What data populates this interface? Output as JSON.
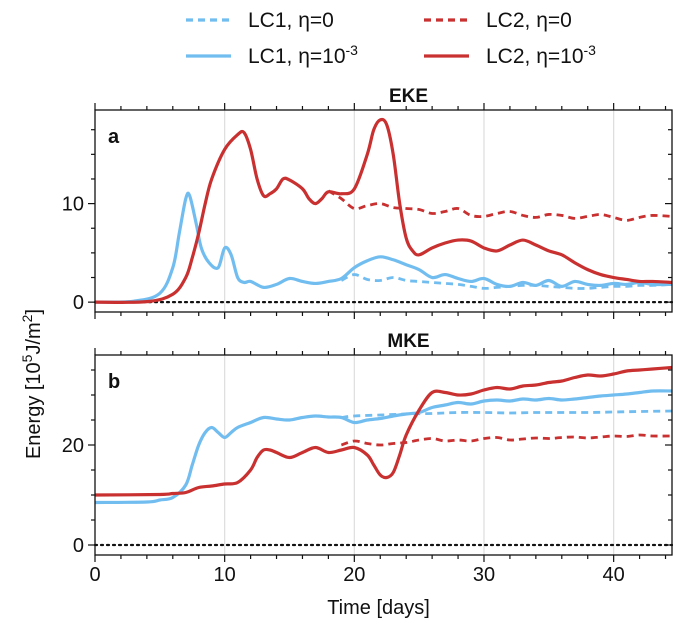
{
  "legend": {
    "entries": [
      {
        "base": "LC1, η=0",
        "sup": "",
        "series": "lc1_eta0"
      },
      {
        "base": "LC2, η=0",
        "sup": "",
        "series": "lc2_eta0"
      },
      {
        "base": "LC1, η=10",
        "sup": "-3",
        "series": "lc1_eta3"
      },
      {
        "base": "LC2, η=10",
        "sup": "-3",
        "series": "lc2_eta3"
      }
    ]
  },
  "ylabel": {
    "pre": "Energy [10",
    "sup": "5",
    "mid": "J/m",
    "sup2": "2",
    "post": "]"
  },
  "colors": {
    "lc1": "#72bdf0",
    "lc2": "#c93030",
    "grid": "#dddddd",
    "axis": "#111111"
  },
  "chart_data": [
    {
      "type": "line",
      "panel_letter": "a",
      "title": "EKE",
      "xlabel": "",
      "ylabel": "Energy [10^5 J/m^2]",
      "xlim": [
        0,
        44.5
      ],
      "ylim": [
        -1,
        19.5
      ],
      "xticks": [
        0,
        10,
        20,
        30,
        40
      ],
      "yticks": [
        0,
        10
      ],
      "zero_line": true,
      "grid": "vertical",
      "series": [
        {
          "name": "LC1, η=10^-3",
          "key": "lc1_eta3",
          "style": "solid",
          "colorKey": "lc1",
          "x": [
            0,
            3,
            5,
            6,
            6.5,
            7,
            7.3,
            7.8,
            8.2,
            8.8,
            9.5,
            10,
            10.5,
            11,
            11.5,
            12,
            13,
            14,
            15,
            16,
            17,
            18,
            19,
            20,
            21,
            22,
            23,
            24,
            25,
            26,
            27,
            28,
            29,
            30,
            31,
            32,
            33,
            34,
            35,
            36,
            37,
            38,
            39,
            40,
            41,
            42,
            43,
            44.5
          ],
          "y": [
            0,
            0.1,
            0.9,
            3.5,
            7,
            10.5,
            10.8,
            8,
            5.5,
            4,
            3.5,
            5.5,
            4.8,
            2.5,
            2,
            2.1,
            1.5,
            1.8,
            2.4,
            2.1,
            1.9,
            2.1,
            2.4,
            3.5,
            4.2,
            4.6,
            4.3,
            3.8,
            3.3,
            2.5,
            2.8,
            2.4,
            2.1,
            2.4,
            1.8,
            1.6,
            2,
            1.7,
            2.2,
            1.6,
            2.1,
            1.8,
            1.7,
            1.9,
            1.8,
            2,
            1.8,
            1.8
          ]
        },
        {
          "name": "LC1, η=0",
          "key": "lc1_eta0",
          "style": "dashed",
          "colorKey": "lc1",
          "x": [
            19,
            20,
            21,
            22,
            23,
            24,
            25,
            26,
            27,
            28,
            29,
            30,
            31,
            32,
            33,
            34,
            35,
            36,
            37,
            38,
            39,
            40,
            41,
            42,
            43,
            44.5
          ],
          "y": [
            2.2,
            2.8,
            2.3,
            2.2,
            2.5,
            2.2,
            2.1,
            2.0,
            1.9,
            1.8,
            1.6,
            1.4,
            1.5,
            1.6,
            1.7,
            1.7,
            1.6,
            1.5,
            1.4,
            1.4,
            1.5,
            1.6,
            1.6,
            1.7,
            1.7,
            1.8
          ]
        },
        {
          "name": "LC2, η=10^-3",
          "key": "lc2_eta3",
          "style": "solid",
          "colorKey": "lc2",
          "x": [
            0,
            4,
            6,
            7,
            7.5,
            8,
            8.5,
            9,
            10,
            11,
            11.5,
            12,
            12.5,
            13,
            13.5,
            14,
            14.5,
            15,
            16,
            16.5,
            17,
            17.5,
            18,
            19,
            20,
            21,
            21.5,
            22,
            22.5,
            23,
            23.5,
            24,
            24.5,
            25,
            26,
            27,
            28,
            29,
            30,
            31,
            32,
            33,
            34,
            35,
            36,
            37,
            38,
            39,
            40,
            41,
            42,
            43,
            44.5
          ],
          "y": [
            0,
            0.05,
            0.8,
            2.5,
            4.5,
            7,
            10,
            12.5,
            15.5,
            17,
            17.2,
            15.5,
            12.5,
            10.8,
            11,
            11.5,
            12.5,
            12.4,
            11.5,
            10.5,
            10,
            10.5,
            11.2,
            11,
            11.5,
            15,
            17.5,
            18.5,
            18,
            15,
            10,
            6.5,
            5.2,
            4.8,
            5.5,
            6.0,
            6.3,
            6.2,
            5.5,
            5.2,
            5.8,
            6.3,
            5.8,
            5.2,
            4.8,
            4.0,
            3.3,
            2.8,
            2.5,
            2.3,
            2.1,
            2.1,
            2.0
          ]
        },
        {
          "name": "LC2, η=0",
          "key": "lc2_eta0",
          "style": "dashed",
          "colorKey": "lc2",
          "x": [
            18,
            19,
            20,
            21,
            22,
            23,
            24,
            25,
            26,
            27,
            28,
            29,
            30,
            31,
            32,
            33,
            34,
            35,
            36,
            37,
            38,
            39,
            40,
            41,
            42,
            43,
            44.5
          ],
          "y": [
            11.3,
            10.5,
            9.5,
            9.8,
            10.0,
            9.6,
            9.5,
            9.4,
            9.0,
            9.2,
            9.5,
            8.8,
            8.7,
            9.0,
            9.2,
            8.8,
            8.6,
            8.9,
            8.8,
            8.5,
            8.7,
            8.9,
            8.6,
            8.3,
            8.6,
            8.8,
            8.7
          ]
        }
      ]
    },
    {
      "type": "line",
      "panel_letter": "b",
      "title": "MKE",
      "xlabel": "Time [days]",
      "ylabel": "Energy [10^5 J/m^2]",
      "xlim": [
        0,
        44.5
      ],
      "ylim": [
        -2,
        38
      ],
      "xticks": [
        0,
        10,
        20,
        30,
        40
      ],
      "yticks": [
        0,
        20
      ],
      "zero_line": true,
      "grid": "vertical",
      "series": [
        {
          "name": "LC1, η=10^-3",
          "key": "lc1_eta3",
          "style": "solid",
          "colorKey": "lc1",
          "x": [
            0,
            4,
            5,
            6,
            7,
            7.5,
            8,
            8.5,
            9,
            9.5,
            10,
            10.5,
            11,
            12,
            13,
            14,
            15,
            16,
            17,
            18,
            19,
            20,
            21,
            22,
            23,
            24,
            25,
            26,
            27,
            28,
            29,
            30,
            31,
            32,
            33,
            34,
            35,
            36,
            37,
            38,
            39,
            40,
            41,
            42,
            43,
            44.5
          ],
          "y": [
            8.5,
            8.6,
            9,
            9.5,
            12,
            16,
            20,
            22.5,
            23.5,
            22.5,
            21.5,
            22.5,
            23.5,
            24.5,
            25.5,
            25.2,
            25.0,
            25.5,
            25.8,
            25.6,
            25.5,
            24.5,
            25.0,
            25.3,
            25.8,
            26.2,
            26.5,
            27.5,
            28.0,
            28.5,
            28.2,
            28.8,
            29.0,
            28.8,
            29.2,
            29.0,
            29.3,
            29.0,
            29.2,
            29.5,
            29.8,
            30.0,
            30.2,
            30.5,
            30.8,
            30.8
          ]
        },
        {
          "name": "LC1, η=0",
          "key": "lc1_eta0",
          "style": "dashed",
          "colorKey": "lc1",
          "x": [
            19,
            20,
            22,
            24,
            26,
            28,
            30,
            32,
            34,
            36,
            38,
            40,
            42,
            44.5
          ],
          "y": [
            25.5,
            25.8,
            26.0,
            26.2,
            26.3,
            26.5,
            26.5,
            26.4,
            26.5,
            26.5,
            26.5,
            26.6,
            26.7,
            26.8
          ]
        },
        {
          "name": "LC2, η=10^-3",
          "key": "lc2_eta3",
          "style": "solid",
          "colorKey": "lc2",
          "x": [
            0,
            5,
            6,
            7,
            8,
            9,
            10,
            11,
            12,
            12.5,
            13,
            13.5,
            14,
            15,
            16,
            17,
            18,
            19,
            20,
            21,
            21.5,
            22,
            22.5,
            23,
            23.5,
            24,
            25,
            26,
            27,
            28,
            29,
            30,
            31,
            32,
            33,
            34,
            35,
            36,
            37,
            38,
            39,
            40,
            41,
            42,
            43,
            44.5
          ],
          "y": [
            10,
            10.1,
            10.3,
            10.5,
            11.5,
            11.8,
            12.2,
            12.5,
            15,
            17.5,
            19,
            19,
            18.5,
            17.5,
            18.5,
            19.5,
            18.5,
            19.0,
            19.5,
            18,
            16,
            14,
            13.5,
            14.5,
            18,
            22,
            27,
            30.5,
            30.5,
            30,
            30.2,
            31.0,
            31.5,
            31.2,
            31.8,
            32.0,
            32.5,
            32.8,
            33.5,
            34,
            33.8,
            34.2,
            34.8,
            35.0,
            35.2,
            35.5
          ]
        },
        {
          "name": "LC2, η=0",
          "key": "lc2_eta0",
          "style": "dashed",
          "colorKey": "lc2",
          "x": [
            19,
            20,
            21,
            22,
            23,
            24,
            25,
            26,
            27,
            28,
            29,
            30,
            31,
            32,
            33,
            34,
            35,
            36,
            37,
            38,
            39,
            40,
            41,
            42,
            43,
            44.5
          ],
          "y": [
            20.0,
            20.8,
            20.3,
            20.0,
            20.3,
            20.5,
            21.0,
            21.3,
            20.8,
            21.0,
            20.8,
            21.3,
            21.5,
            21.0,
            21.2,
            21.4,
            21.3,
            21.5,
            21.6,
            21.4,
            21.6,
            21.8,
            21.7,
            22.0,
            21.8,
            21.8
          ]
        }
      ]
    }
  ]
}
